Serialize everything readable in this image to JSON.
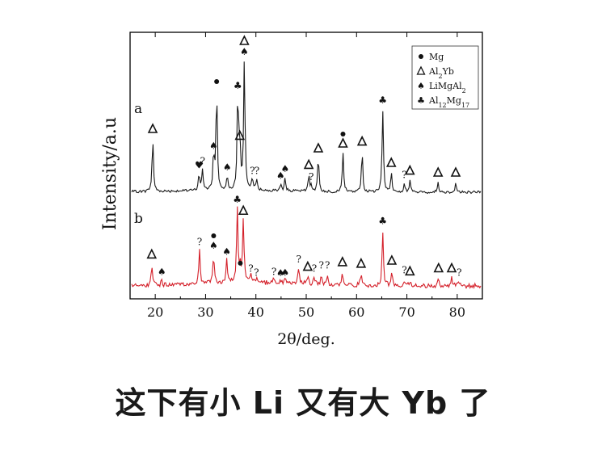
{
  "chart_data": {
    "type": "line",
    "xlabel": "2θ/deg.",
    "ylabel": "Intensity/a.u",
    "xlim": [
      15,
      85
    ],
    "xticks": [
      20,
      30,
      40,
      50,
      60,
      70,
      80
    ],
    "grid": false,
    "legend_position": "top-right",
    "legend": [
      {
        "symbol": "●",
        "label": "Mg",
        "phase": "mg"
      },
      {
        "symbol": "Δ",
        "label": "Al2Yb",
        "phase": "al2yb"
      },
      {
        "symbol": "♠",
        "label": "LiMgAl2",
        "phase": "limgal2"
      },
      {
        "symbol": "♣",
        "label": "Al12Mg17",
        "phase": "al12mg17"
      }
    ],
    "series": [
      {
        "name": "a",
        "color": "#1a1a1a",
        "baseline": 0.1,
        "peaks": [
          {
            "x": 19.5,
            "h": 0.55,
            "marker": "al2yb"
          },
          {
            "x": 28.7,
            "h": 0.18,
            "marker": "heart"
          },
          {
            "x": 29.4,
            "h": 0.22,
            "marker": "?"
          },
          {
            "x": 31.6,
            "h": 0.38,
            "marker": "limgal2"
          },
          {
            "x": 32.2,
            "h": 1.05,
            "marker": "mg"
          },
          {
            "x": 34.3,
            "h": 0.16,
            "marker": "limgal2"
          },
          {
            "x": 36.4,
            "h": 1.0,
            "marker": "al12mg17"
          },
          {
            "x": 36.8,
            "h": 0.48,
            "marker": "al2yb"
          },
          {
            "x": 37.7,
            "h": 1.35,
            "marker": "limgal2+al2yb"
          },
          {
            "x": 39.3,
            "h": 0.12,
            "marker": "?"
          },
          {
            "x": 40.2,
            "h": 0.12,
            "marker": "?"
          },
          {
            "x": 44.9,
            "h": 0.07,
            "marker": "limgal2"
          },
          {
            "x": 45.8,
            "h": 0.14,
            "marker": "limgal2"
          },
          {
            "x": 50.5,
            "h": 0.18,
            "marker": "al2yb"
          },
          {
            "x": 51.0,
            "h": 0.06,
            "marker": "?"
          },
          {
            "x": 52.4,
            "h": 0.35,
            "marker": "al2yb"
          },
          {
            "x": 57.3,
            "h": 0.4,
            "marker": "al2yb+mg"
          },
          {
            "x": 61.1,
            "h": 0.42,
            "marker": "al2yb"
          },
          {
            "x": 65.2,
            "h": 0.85,
            "marker": "al12mg17"
          },
          {
            "x": 66.9,
            "h": 0.2,
            "marker": "al2yb"
          },
          {
            "x": 69.5,
            "h": 0.08,
            "marker": "?"
          },
          {
            "x": 70.6,
            "h": 0.12,
            "marker": "al2yb"
          },
          {
            "x": 76.2,
            "h": 0.1,
            "marker": "al2yb"
          },
          {
            "x": 79.7,
            "h": 0.1,
            "marker": "al2yb"
          }
        ]
      },
      {
        "name": "b",
        "color": "#d4202a",
        "baseline": 0.12,
        "peaks": [
          {
            "x": 19.3,
            "h": 0.28,
            "marker": "al2yb"
          },
          {
            "x": 21.3,
            "h": 0.06,
            "marker": "limgal2"
          },
          {
            "x": 28.8,
            "h": 0.45,
            "marker": "?"
          },
          {
            "x": 31.6,
            "h": 0.4,
            "marker": "limgal2+mg"
          },
          {
            "x": 34.2,
            "h": 0.32,
            "marker": "limgal2"
          },
          {
            "x": 36.3,
            "h": 1.0,
            "marker": "al12mg17"
          },
          {
            "x": 36.9,
            "h": 0.18,
            "marker": "mg"
          },
          {
            "x": 37.5,
            "h": 0.85,
            "marker": "al2yb"
          },
          {
            "x": 39.0,
            "h": 0.1,
            "marker": "?"
          },
          {
            "x": 40.1,
            "h": 0.05,
            "marker": "?"
          },
          {
            "x": 43.6,
            "h": 0.06,
            "marker": "?"
          },
          {
            "x": 44.9,
            "h": 0.04,
            "marker": "limgal2"
          },
          {
            "x": 45.8,
            "h": 0.05,
            "marker": "limgal2"
          },
          {
            "x": 48.5,
            "h": 0.22,
            "marker": "?"
          },
          {
            "x": 50.3,
            "h": 0.12,
            "marker": "al2yb"
          },
          {
            "x": 51.6,
            "h": 0.1,
            "marker": "?"
          },
          {
            "x": 53.0,
            "h": 0.14,
            "marker": "?"
          },
          {
            "x": 54.2,
            "h": 0.14,
            "marker": "?"
          },
          {
            "x": 57.2,
            "h": 0.18,
            "marker": "al2yb"
          },
          {
            "x": 60.9,
            "h": 0.16,
            "marker": "al2yb"
          },
          {
            "x": 65.2,
            "h": 0.72,
            "marker": "al12mg17"
          },
          {
            "x": 67.0,
            "h": 0.2,
            "marker": "al2yb"
          },
          {
            "x": 69.5,
            "h": 0.08,
            "marker": "?"
          },
          {
            "x": 70.6,
            "h": 0.06,
            "marker": "al2yb"
          },
          {
            "x": 76.3,
            "h": 0.1,
            "marker": "al2yb"
          },
          {
            "x": 78.9,
            "h": 0.1,
            "marker": "al2yb"
          },
          {
            "x": 80.4,
            "h": 0.05,
            "marker": "?"
          }
        ]
      }
    ]
  },
  "caption": "这下有小 Li 又有大 Yb 了"
}
